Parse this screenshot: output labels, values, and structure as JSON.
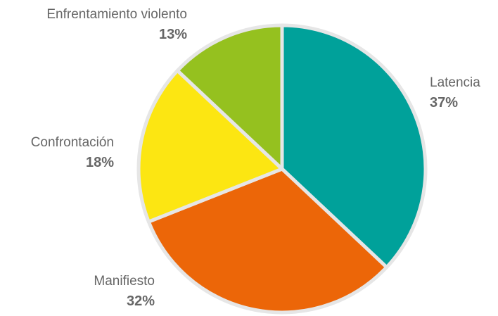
{
  "chart_data": {
    "type": "pie",
    "title": "",
    "slices": [
      {
        "label": "Latencia",
        "value": 37,
        "value_label": "37%",
        "color": "#00a19a"
      },
      {
        "label": "Manifiesto",
        "value": 32,
        "value_label": "32%",
        "color": "#ec6608"
      },
      {
        "label": "Confrontación",
        "value": 18,
        "value_label": "18%",
        "color": "#fce612"
      },
      {
        "label": "Enfrentamiento violento",
        "value": 13,
        "value_label": "13%",
        "color": "#95c11f"
      }
    ],
    "start": "12 o'clock",
    "direction": "clockwise",
    "label_style": "outside, name above bold percentage"
  }
}
